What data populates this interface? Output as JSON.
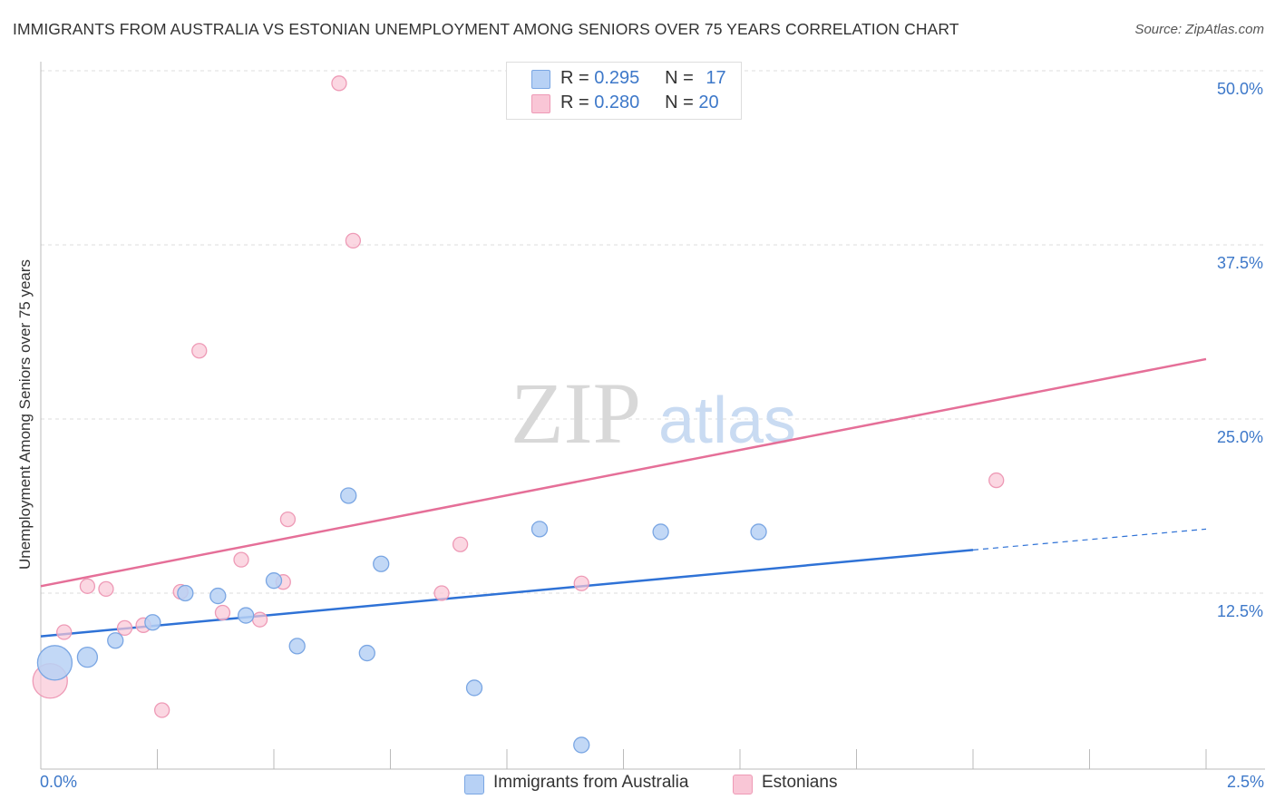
{
  "title": "IMMIGRANTS FROM AUSTRALIA VS ESTONIAN UNEMPLOYMENT AMONG SENIORS OVER 75 YEARS CORRELATION CHART",
  "source": "Source: ZipAtlas.com",
  "watermark": {
    "zip": "ZIP",
    "atlas": "atlas"
  },
  "colors": {
    "blue_fill": "#b7d1f5",
    "blue_stroke": "#7aa6e3",
    "blue_line": "#2f72d6",
    "pink_fill": "#f9c6d6",
    "pink_stroke": "#ee9ab6",
    "pink_line": "#e56f98",
    "grid": "#dcdcdc",
    "axis_text": "#3d78c9"
  },
  "legend_top": [
    {
      "r_label": "R =",
      "r_value": "0.295",
      "n_label": "N =",
      "n_value": "17",
      "color": "blue"
    },
    {
      "r_label": "R =",
      "r_value": "0.280",
      "n_label": "N =",
      "n_value": "20",
      "color": "pink"
    }
  ],
  "legend_bottom": [
    {
      "label": "Immigrants from Australia",
      "color": "blue"
    },
    {
      "label": "Estonians",
      "color": "pink"
    }
  ],
  "chart_data": {
    "type": "scatter",
    "title": "IMMIGRANTS FROM AUSTRALIA VS ESTONIAN UNEMPLOYMENT AMONG SENIORS OVER 75 YEARS CORRELATION CHART",
    "xlabel": "",
    "ylabel": "Unemployment Among Seniors over 75 years",
    "xlim": [
      0,
      2.5
    ],
    "ylim": [
      0,
      50
    ],
    "x_tick_labels": [
      "0.0%",
      "2.5%"
    ],
    "y_ticks": [
      12.5,
      25.0,
      37.5,
      50.0
    ],
    "y_tick_labels": [
      "12.5%",
      "25.0%",
      "37.5%",
      "50.0%"
    ],
    "series": [
      {
        "name": "Immigrants from Australia",
        "color": "blue",
        "R": 0.295,
        "N": 17,
        "points": [
          {
            "x": 0.03,
            "y": 7.5,
            "size": "large"
          },
          {
            "x": 0.1,
            "y": 7.9
          },
          {
            "x": 0.16,
            "y": 9.1
          },
          {
            "x": 0.24,
            "y": 10.4
          },
          {
            "x": 0.31,
            "y": 12.5
          },
          {
            "x": 0.38,
            "y": 12.3
          },
          {
            "x": 0.44,
            "y": 10.9
          },
          {
            "x": 0.5,
            "y": 13.4
          },
          {
            "x": 0.55,
            "y": 8.7
          },
          {
            "x": 0.66,
            "y": 19.5
          },
          {
            "x": 0.73,
            "y": 14.6
          },
          {
            "x": 0.7,
            "y": 8.2
          },
          {
            "x": 0.93,
            "y": 5.7
          },
          {
            "x": 1.07,
            "y": 17.1
          },
          {
            "x": 1.16,
            "y": 1.6
          },
          {
            "x": 1.33,
            "y": 16.9
          },
          {
            "x": 1.54,
            "y": 16.9
          }
        ],
        "trend": {
          "x0": 0.0,
          "y0": 9.4,
          "x1": 2.0,
          "y1": 15.6,
          "dashed_to_x": 2.5,
          "dashed_to_y": 17.1
        }
      },
      {
        "name": "Estonians",
        "color": "pink",
        "R": 0.28,
        "N": 20,
        "points": [
          {
            "x": 0.02,
            "y": 6.2,
            "size": "large"
          },
          {
            "x": 0.05,
            "y": 9.7
          },
          {
            "x": 0.1,
            "y": 13.0
          },
          {
            "x": 0.14,
            "y": 12.8
          },
          {
            "x": 0.18,
            "y": 10.0
          },
          {
            "x": 0.22,
            "y": 10.2
          },
          {
            "x": 0.26,
            "y": 4.1
          },
          {
            "x": 0.3,
            "y": 12.6
          },
          {
            "x": 0.34,
            "y": 29.9
          },
          {
            "x": 0.39,
            "y": 11.1
          },
          {
            "x": 0.43,
            "y": 14.9
          },
          {
            "x": 0.47,
            "y": 10.6
          },
          {
            "x": 0.52,
            "y": 13.3
          },
          {
            "x": 0.53,
            "y": 17.8
          },
          {
            "x": 0.64,
            "y": 49.1
          },
          {
            "x": 0.67,
            "y": 37.8
          },
          {
            "x": 0.86,
            "y": 12.5
          },
          {
            "x": 0.9,
            "y": 16.0
          },
          {
            "x": 1.16,
            "y": 13.2
          },
          {
            "x": 2.05,
            "y": 20.6
          }
        ],
        "trend": {
          "x0": 0.0,
          "y0": 13.0,
          "x1": 2.5,
          "y1": 29.3
        }
      }
    ]
  }
}
